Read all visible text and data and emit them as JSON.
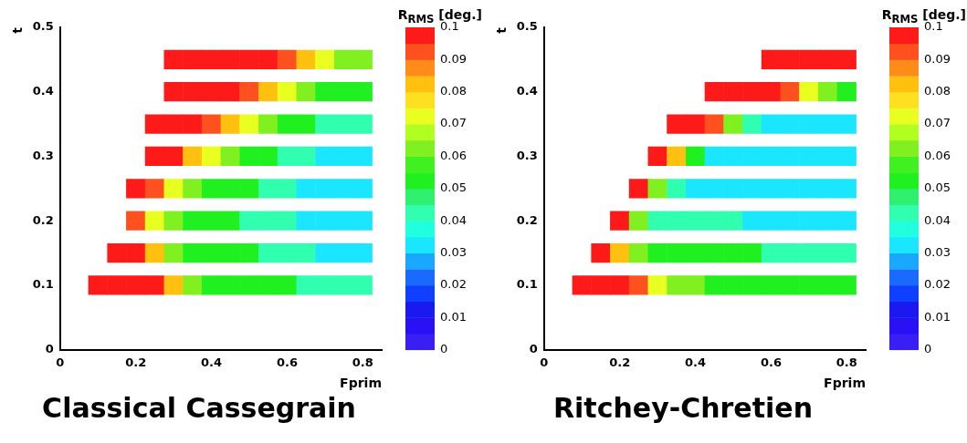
{
  "chart_data": [
    {
      "type": "scatter",
      "title": "Classical Cassegrain",
      "xlabel": "Fprim",
      "ylabel": "t",
      "clabel": "R$_{RMS}$ [deg.]",
      "marker": "square",
      "legend": false,
      "grid": false,
      "xlim": [
        0,
        0.85
      ],
      "ylim": [
        0,
        0.5
      ],
      "xticks": [
        0,
        0.2,
        0.4,
        0.6,
        0.8
      ],
      "yticks": [
        0,
        0.1,
        0.2,
        0.3,
        0.4,
        0.5
      ],
      "clim": [
        0,
        0.1
      ],
      "cticks": [
        0,
        0.01,
        0.02,
        0.03,
        0.04,
        0.05,
        0.06,
        0.07,
        0.08,
        0.09,
        0.1
      ],
      "x": [
        0.1,
        0.15,
        0.2,
        0.25,
        0.3,
        0.35,
        0.4,
        0.45,
        0.5,
        0.55,
        0.6,
        0.65,
        0.7,
        0.75,
        0.8,
        0.15,
        0.2,
        0.25,
        0.3,
        0.35,
        0.4,
        0.45,
        0.5,
        0.55,
        0.6,
        0.65,
        0.7,
        0.75,
        0.8,
        0.2,
        0.25,
        0.3,
        0.35,
        0.4,
        0.45,
        0.5,
        0.55,
        0.6,
        0.65,
        0.7,
        0.75,
        0.8,
        0.2,
        0.25,
        0.3,
        0.35,
        0.4,
        0.45,
        0.5,
        0.55,
        0.6,
        0.65,
        0.7,
        0.75,
        0.8,
        0.25,
        0.3,
        0.35,
        0.4,
        0.45,
        0.5,
        0.55,
        0.6,
        0.65,
        0.7,
        0.75,
        0.8,
        0.25,
        0.3,
        0.35,
        0.4,
        0.45,
        0.5,
        0.55,
        0.6,
        0.65,
        0.7,
        0.75,
        0.8,
        0.3,
        0.35,
        0.4,
        0.45,
        0.5,
        0.55,
        0.6,
        0.65,
        0.7,
        0.75,
        0.8,
        0.3,
        0.35,
        0.4,
        0.45,
        0.5,
        0.55,
        0.6,
        0.65,
        0.7,
        0.75,
        0.8
      ],
      "values": [
        0.1,
        0.1,
        0.1,
        0.1,
        0.1,
        0.1,
        0.1,
        0.1,
        0.1,
        0.1,
        0.1,
        0.1,
        0.1,
        0.1,
        0.1,
        0.15,
        0.15,
        0.15,
        0.15,
        0.15,
        0.15,
        0.15,
        0.15,
        0.15,
        0.15,
        0.15,
        0.15,
        0.15,
        0.15,
        0.2,
        0.2,
        0.2,
        0.2,
        0.2,
        0.2,
        0.2,
        0.2,
        0.2,
        0.2,
        0.2,
        0.2,
        0.2,
        0.25,
        0.25,
        0.25,
        0.25,
        0.25,
        0.25,
        0.25,
        0.25,
        0.25,
        0.25,
        0.25,
        0.25,
        0.25,
        0.3,
        0.3,
        0.3,
        0.3,
        0.3,
        0.3,
        0.3,
        0.3,
        0.3,
        0.3,
        0.3,
        0.3,
        0.35,
        0.35,
        0.35,
        0.35,
        0.35,
        0.35,
        0.35,
        0.35,
        0.35,
        0.35,
        0.35,
        0.35,
        0.4,
        0.4,
        0.4,
        0.4,
        0.4,
        0.4,
        0.4,
        0.4,
        0.4,
        0.4,
        0.4,
        0.45,
        0.45,
        0.45,
        0.45,
        0.45,
        0.45,
        0.45,
        0.45,
        0.45,
        0.45,
        0.45
      ],
      "cvalues": [
        0.1,
        0.1,
        0.1,
        0.1,
        0.08,
        0.06,
        0.05,
        0.05,
        0.05,
        0.05,
        0.05,
        0.04,
        0.04,
        0.04,
        0.04,
        0.1,
        0.1,
        0.08,
        0.06,
        0.05,
        0.05,
        0.05,
        0.05,
        0.04,
        0.04,
        0.04,
        0.03,
        0.03,
        0.03,
        0.09,
        0.07,
        0.06,
        0.05,
        0.05,
        0.05,
        0.04,
        0.04,
        0.04,
        0.03,
        0.03,
        0.03,
        0.03,
        0.1,
        0.09,
        0.07,
        0.06,
        0.05,
        0.05,
        0.05,
        0.04,
        0.04,
        0.03,
        0.03,
        0.03,
        0.03,
        0.1,
        0.1,
        0.08,
        0.07,
        0.06,
        0.05,
        0.05,
        0.04,
        0.04,
        0.03,
        0.03,
        0.03,
        0.1,
        0.1,
        0.1,
        0.09,
        0.08,
        0.07,
        0.06,
        0.05,
        0.05,
        0.04,
        0.04,
        0.04,
        0.1,
        0.1,
        0.1,
        0.1,
        0.09,
        0.08,
        0.07,
        0.06,
        0.05,
        0.05,
        0.05,
        0.1,
        0.1,
        0.1,
        0.1,
        0.1,
        0.1,
        0.09,
        0.08,
        0.07,
        0.06,
        0.06
      ]
    },
    {
      "type": "scatter",
      "title": "Ritchey-Chretien",
      "xlabel": "Fprim",
      "ylabel": "t",
      "clabel": "R$_{RMS}$ [deg.]",
      "marker": "square",
      "legend": false,
      "grid": false,
      "xlim": [
        0,
        0.85
      ],
      "ylim": [
        0,
        0.5
      ],
      "xticks": [
        0,
        0.2,
        0.4,
        0.6,
        0.8
      ],
      "yticks": [
        0,
        0.1,
        0.2,
        0.3,
        0.4,
        0.5
      ],
      "clim": [
        0,
        0.1
      ],
      "cticks": [
        0,
        0.01,
        0.02,
        0.03,
        0.04,
        0.05,
        0.06,
        0.07,
        0.08,
        0.09,
        0.1
      ],
      "x": [
        0.1,
        0.15,
        0.2,
        0.25,
        0.3,
        0.35,
        0.4,
        0.45,
        0.5,
        0.55,
        0.6,
        0.65,
        0.7,
        0.75,
        0.8,
        0.15,
        0.2,
        0.25,
        0.3,
        0.35,
        0.4,
        0.45,
        0.5,
        0.55,
        0.6,
        0.65,
        0.7,
        0.75,
        0.8,
        0.2,
        0.25,
        0.3,
        0.35,
        0.4,
        0.45,
        0.5,
        0.55,
        0.6,
        0.65,
        0.7,
        0.75,
        0.8,
        0.25,
        0.3,
        0.35,
        0.4,
        0.45,
        0.5,
        0.55,
        0.6,
        0.65,
        0.7,
        0.75,
        0.8,
        0.3,
        0.35,
        0.4,
        0.45,
        0.5,
        0.55,
        0.6,
        0.65,
        0.7,
        0.75,
        0.8,
        0.35,
        0.4,
        0.45,
        0.5,
        0.55,
        0.6,
        0.65,
        0.7,
        0.75,
        0.8,
        0.45,
        0.5,
        0.55,
        0.6,
        0.65,
        0.7,
        0.75,
        0.8,
        0.6,
        0.65,
        0.7,
        0.75,
        0.8
      ],
      "values": [
        0.1,
        0.1,
        0.1,
        0.1,
        0.1,
        0.1,
        0.1,
        0.1,
        0.1,
        0.1,
        0.1,
        0.1,
        0.1,
        0.1,
        0.1,
        0.15,
        0.15,
        0.15,
        0.15,
        0.15,
        0.15,
        0.15,
        0.15,
        0.15,
        0.15,
        0.15,
        0.15,
        0.15,
        0.15,
        0.2,
        0.2,
        0.2,
        0.2,
        0.2,
        0.2,
        0.2,
        0.2,
        0.2,
        0.2,
        0.2,
        0.2,
        0.2,
        0.25,
        0.25,
        0.25,
        0.25,
        0.25,
        0.25,
        0.25,
        0.25,
        0.25,
        0.25,
        0.25,
        0.25,
        0.3,
        0.3,
        0.3,
        0.3,
        0.3,
        0.3,
        0.3,
        0.3,
        0.3,
        0.3,
        0.3,
        0.35,
        0.35,
        0.35,
        0.35,
        0.35,
        0.35,
        0.35,
        0.35,
        0.35,
        0.35,
        0.4,
        0.4,
        0.4,
        0.4,
        0.4,
        0.4,
        0.4,
        0.4,
        0.45,
        0.45,
        0.45,
        0.45,
        0.45
      ],
      "cvalues": [
        0.1,
        0.1,
        0.1,
        0.09,
        0.07,
        0.06,
        0.06,
        0.05,
        0.05,
        0.05,
        0.05,
        0.05,
        0.05,
        0.05,
        0.05,
        0.1,
        0.08,
        0.06,
        0.05,
        0.05,
        0.05,
        0.05,
        0.05,
        0.05,
        0.04,
        0.04,
        0.04,
        0.04,
        0.04,
        0.1,
        0.06,
        0.04,
        0.04,
        0.04,
        0.04,
        0.04,
        0.03,
        0.03,
        0.03,
        0.03,
        0.03,
        0.03,
        0.1,
        0.06,
        0.04,
        0.03,
        0.03,
        0.03,
        0.03,
        0.03,
        0.03,
        0.03,
        0.03,
        0.03,
        0.1,
        0.08,
        0.05,
        0.03,
        0.03,
        0.03,
        0.03,
        0.03,
        0.03,
        0.03,
        0.03,
        0.1,
        0.1,
        0.09,
        0.06,
        0.04,
        0.03,
        0.03,
        0.03,
        0.03,
        0.03,
        0.1,
        0.1,
        0.1,
        0.1,
        0.09,
        0.07,
        0.06,
        0.05,
        0.1,
        0.1,
        0.1,
        0.1,
        0.1
      ]
    }
  ]
}
